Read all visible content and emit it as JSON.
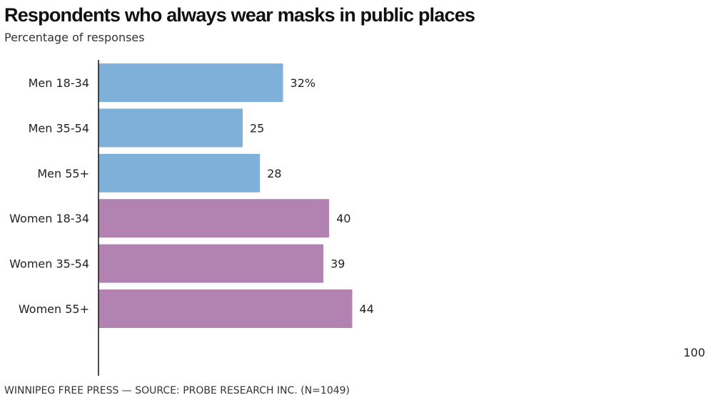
{
  "title": "Respondents who always wear masks in public places",
  "subtitle": "Percentage of responses",
  "source": "WINNIPEG FREE PRESS — SOURCE: PROBE RESEARCH INC. (N=1049)",
  "chart_data": {
    "type": "bar",
    "orientation": "horizontal",
    "categories": [
      "Men 18-34",
      "Men 35-54",
      "Men 55+",
      "Women 18-34",
      "Women 35-54",
      "Women 55+"
    ],
    "values": [
      32,
      25,
      28,
      40,
      39,
      44
    ],
    "data_labels": [
      "32%",
      "25",
      "28",
      "40",
      "39",
      "44"
    ],
    "colors": [
      "#7eb0d9",
      "#7eb0d9",
      "#7eb0d9",
      "#b283b0",
      "#b283b0",
      "#b283b0"
    ],
    "xlim": [
      0,
      100
    ],
    "x_tick_labels": [
      "100"
    ],
    "grid": false
  }
}
